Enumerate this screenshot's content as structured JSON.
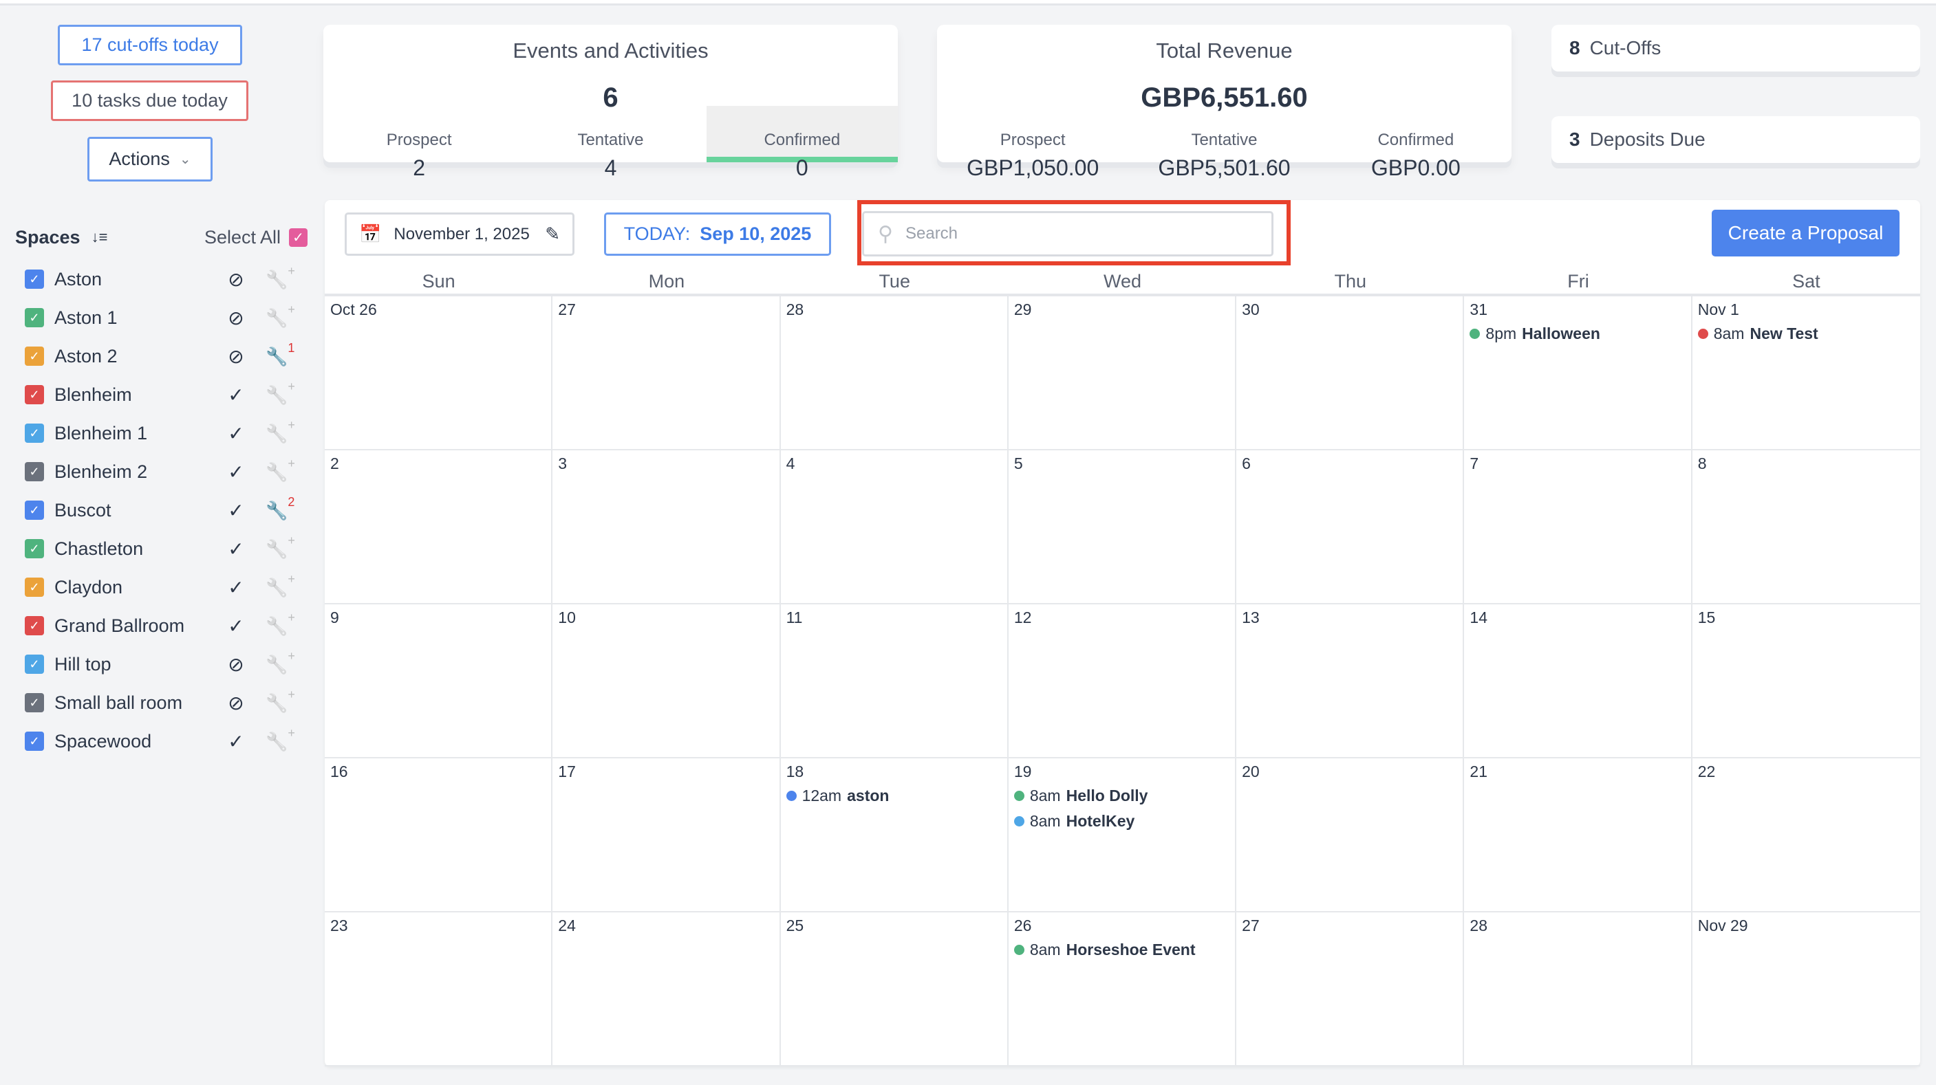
{
  "header": {
    "cutoffs_today": "17 cut-offs today",
    "tasks_due": "10 tasks due today",
    "actions": "Actions"
  },
  "events_card": {
    "title": "Events and Activities",
    "total": "6",
    "cols": [
      {
        "label": "Prospect",
        "value": "2"
      },
      {
        "label": "Tentative",
        "value": "4"
      },
      {
        "label": "Confirmed",
        "value": "0",
        "selected": true
      }
    ]
  },
  "revenue_card": {
    "title": "Total Revenue",
    "total": "GBP6,551.60",
    "cols": [
      {
        "label": "Prospect",
        "value": "GBP1,050.00"
      },
      {
        "label": "Tentative",
        "value": "GBP5,501.60"
      },
      {
        "label": "Confirmed",
        "value": "GBP0.00"
      }
    ]
  },
  "cutoffs": {
    "count": "8",
    "label": "Cut-Offs"
  },
  "deposits": {
    "count": "3",
    "label": "Deposits Due"
  },
  "sidebar": {
    "title": "Spaces",
    "select_all": "Select All",
    "spaces": [
      {
        "name": "Aston",
        "color": "#4d84ec",
        "status": "unavailable",
        "maintenance": null
      },
      {
        "name": "Aston 1",
        "color": "#4fb37e",
        "status": "unavailable",
        "maintenance": null
      },
      {
        "name": "Aston 2",
        "color": "#eba23a",
        "status": "unavailable",
        "maintenance": "1"
      },
      {
        "name": "Blenheim",
        "color": "#df4b4b",
        "status": "available",
        "maintenance": null
      },
      {
        "name": "Blenheim 1",
        "color": "#4ea6e6",
        "status": "available",
        "maintenance": null
      },
      {
        "name": "Blenheim 2",
        "color": "#6b717c",
        "status": "available",
        "maintenance": null
      },
      {
        "name": "Buscot",
        "color": "#4d84ec",
        "status": "available",
        "maintenance": "2"
      },
      {
        "name": "Chastleton",
        "color": "#4fb37e",
        "status": "available",
        "maintenance": null
      },
      {
        "name": "Claydon",
        "color": "#eba23a",
        "status": "available",
        "maintenance": null
      },
      {
        "name": "Grand Ballroom",
        "color": "#df4b4b",
        "status": "available",
        "maintenance": null
      },
      {
        "name": "Hill top",
        "color": "#4ea6e6",
        "status": "unavailable",
        "maintenance": null
      },
      {
        "name": "Small ball room",
        "color": "#6b717c",
        "status": "unavailable",
        "maintenance": null
      },
      {
        "name": "Spacewood",
        "color": "#4d84ec",
        "status": "available",
        "maintenance": null
      }
    ]
  },
  "toolbar": {
    "date": "November 1, 2025",
    "today_label": "TODAY:",
    "today_date": "Sep 10, 2025",
    "search_placeholder": "Search",
    "create": "Create a Proposal"
  },
  "calendar": {
    "weekdays": [
      "Sun",
      "Mon",
      "Tue",
      "Wed",
      "Thu",
      "Fri",
      "Sat"
    ],
    "weeks": [
      [
        {
          "d": "Oct 26"
        },
        {
          "d": "27"
        },
        {
          "d": "28"
        },
        {
          "d": "29"
        },
        {
          "d": "30"
        },
        {
          "d": "31",
          "events": [
            {
              "time": "8pm",
              "title": "Halloween",
              "color": "#4fb37e"
            }
          ]
        },
        {
          "d": "Nov 1",
          "events": [
            {
              "time": "8am",
              "title": "New Test",
              "color": "#df4b4b"
            }
          ]
        }
      ],
      [
        {
          "d": "2"
        },
        {
          "d": "3"
        },
        {
          "d": "4"
        },
        {
          "d": "5"
        },
        {
          "d": "6"
        },
        {
          "d": "7"
        },
        {
          "d": "8"
        }
      ],
      [
        {
          "d": "9"
        },
        {
          "d": "10"
        },
        {
          "d": "11"
        },
        {
          "d": "12"
        },
        {
          "d": "13"
        },
        {
          "d": "14"
        },
        {
          "d": "15"
        }
      ],
      [
        {
          "d": "16"
        },
        {
          "d": "17"
        },
        {
          "d": "18",
          "events": [
            {
              "time": "12am",
              "title": "aston",
              "color": "#4d84ec"
            }
          ]
        },
        {
          "d": "19",
          "events": [
            {
              "time": "8am",
              "title": "Hello Dolly",
              "color": "#4fb37e"
            },
            {
              "time": "8am",
              "title": "HotelKey",
              "color": "#4ea6e6"
            }
          ]
        },
        {
          "d": "20"
        },
        {
          "d": "21"
        },
        {
          "d": "22"
        }
      ],
      [
        {
          "d": "23"
        },
        {
          "d": "24"
        },
        {
          "d": "25"
        },
        {
          "d": "26",
          "events": [
            {
              "time": "8am",
              "title": "Horseshoe Event",
              "color": "#4fb37e"
            }
          ]
        },
        {
          "d": "27"
        },
        {
          "d": "28"
        },
        {
          "d": "Nov 29"
        }
      ]
    ]
  }
}
